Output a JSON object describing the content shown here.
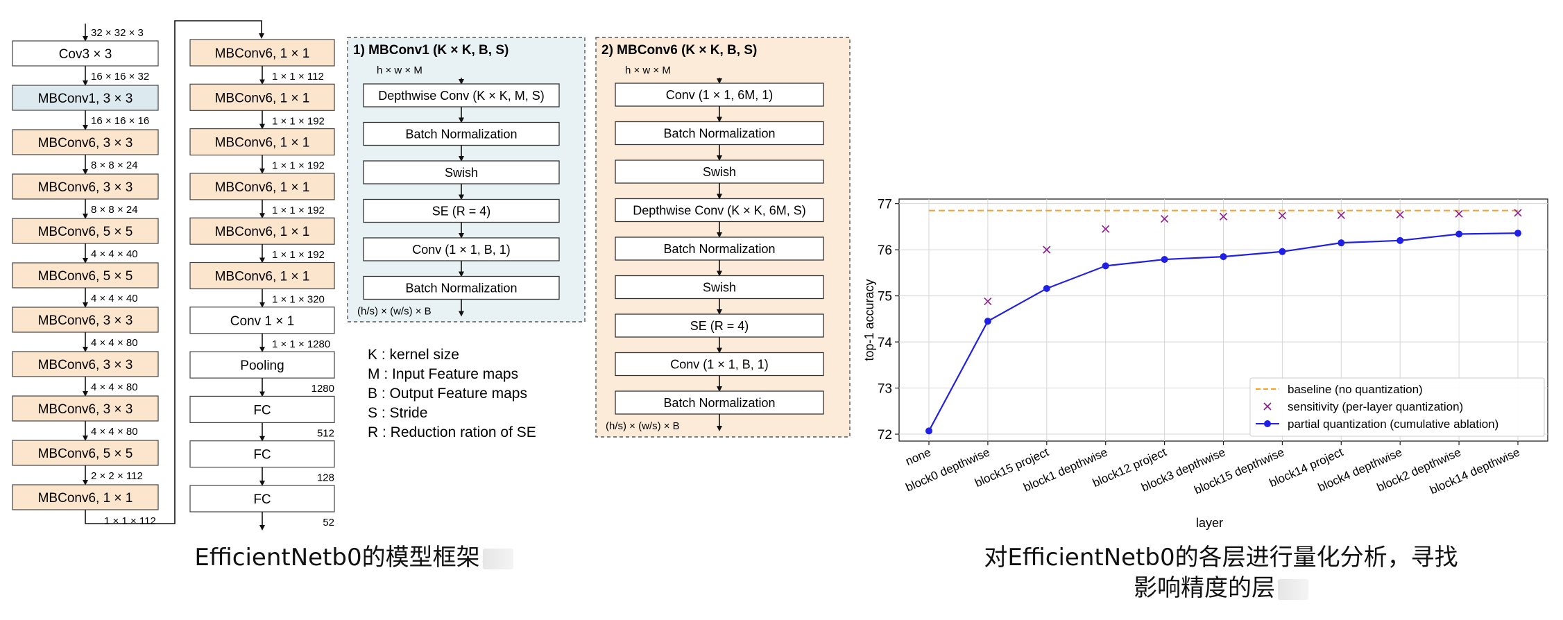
{
  "backbone": {
    "column1": [
      {
        "label": "Cov3 × 3",
        "kind": "conv",
        "shape_below": "16 × 16 × 32"
      },
      {
        "label": "MBConv1, 3 × 3",
        "kind": "mb1",
        "shape_below": "16 × 16 × 16"
      },
      {
        "label": "MBConv6, 3 × 3",
        "kind": "mb6",
        "shape_below": "8 × 8 × 24"
      },
      {
        "label": "MBConv6, 3 × 3",
        "kind": "mb6",
        "shape_below": "8 × 8 × 24"
      },
      {
        "label": "MBConv6, 5 × 5",
        "kind": "mb6",
        "shape_below": "4 × 4 × 40"
      },
      {
        "label": "MBConv6, 5 × 5",
        "kind": "mb6",
        "shape_below": "4 × 4 × 40"
      },
      {
        "label": "MBConv6, 3 × 3",
        "kind": "mb6",
        "shape_below": "4 × 4 × 80"
      },
      {
        "label": "MBConv6, 3 × 3",
        "kind": "mb6",
        "shape_below": "4 × 4 × 80"
      },
      {
        "label": "MBConv6, 3 × 3",
        "kind": "mb6",
        "shape_below": "4 × 4 × 80"
      },
      {
        "label": "MBConv6, 5 × 5",
        "kind": "mb6",
        "shape_below": "2 × 2 × 112"
      },
      {
        "label": "MBConv6, 1 × 1",
        "kind": "mb6",
        "shape_below": "1 × 1 × 112"
      }
    ],
    "input_shape": "32 × 32 × 3",
    "column2": [
      {
        "label": "MBConv6, 1 × 1",
        "kind": "mb6",
        "shape_below": "1 × 1 × 112"
      },
      {
        "label": "MBConv6, 1 × 1",
        "kind": "mb6",
        "shape_below": "1 × 1 × 192"
      },
      {
        "label": "MBConv6, 1 × 1",
        "kind": "mb6",
        "shape_below": "1 × 1 × 192"
      },
      {
        "label": "MBConv6, 1 × 1",
        "kind": "mb6",
        "shape_below": "1 × 1 × 192"
      },
      {
        "label": "MBConv6, 1 × 1",
        "kind": "mb6",
        "shape_below": "1 × 1 × 192"
      },
      {
        "label": "MBConv6, 1 × 1",
        "kind": "mb6",
        "shape_below": "1 × 1 × 320"
      },
      {
        "label": "Conv 1 × 1",
        "kind": "plain",
        "shape_below": "1 × 1 × 1280"
      },
      {
        "label": "Pooling",
        "kind": "plain",
        "shape_below": "1280"
      },
      {
        "label": "FC",
        "kind": "plain",
        "shape_below": "512"
      },
      {
        "label": "FC",
        "kind": "plain",
        "shape_below": "128"
      },
      {
        "label": "FC",
        "kind": "plain",
        "shape_below": "52"
      }
    ]
  },
  "mbconv1": {
    "title": "1) MBConv1 (K × K, B, S)",
    "input": "h × w × M",
    "output": "(h/s) × (w/s) × B",
    "layers": [
      "Depthwise Conv (K × K, M, S)",
      "Batch Normalization",
      "Swish",
      "SE (R = 4)",
      "Conv (1 × 1, B, 1)",
      "Batch Normalization"
    ]
  },
  "mbconv6": {
    "title": "2) MBConv6 (K × K, B, S)",
    "input": "h × w × M",
    "output": "(h/s) × (w/s) × B",
    "layers": [
      "Conv (1 × 1, 6M, 1)",
      "Batch Normalization",
      "Swish",
      "Depthwise Conv (K × K, 6M, S)",
      "Batch Normalization",
      "Swish",
      "SE (R = 4)",
      "Conv (1 × 1, B, 1)",
      "Batch Normalization"
    ]
  },
  "legend_defs": [
    "K : kernel size",
    "M : Input Feature maps",
    "B : Output Feature maps",
    "S : Stride",
    "R : Reduction ration of SE"
  ],
  "colors": {
    "mb1_fill": "#dce9ee",
    "mb6_fill": "#fbe5cc",
    "panel1_fill": "#e8f1f3",
    "panel2_fill": "#fcebd9",
    "baseline": "#ff9f1c",
    "sensitivity": "#8b1a8b",
    "partial": "#1f1fe6"
  },
  "captions": {
    "left": "EfficientNetb0的模型框架",
    "right_line1": "对EfficientNetb0的各层进行量化分析，寻找",
    "right_line2": "影响精度的层"
  },
  "chart_data": {
    "type": "line",
    "xlabel": "layer",
    "ylabel": "top-1 accuracy",
    "categories": [
      "none",
      "block0 depthwise",
      "block15 project",
      "block1 depthwise",
      "block12 project",
      "block3 depthwise",
      "block15 depthwise",
      "block14 project",
      "block4 depthwise",
      "block2 depthwise",
      "block14 depthwise"
    ],
    "ylim": [
      71.85,
      77.1
    ],
    "yticks": [
      72,
      73,
      74,
      75,
      76,
      77
    ],
    "grid": true,
    "legend_position": "lower-right",
    "series": [
      {
        "name": "baseline (no quantization)",
        "style": "dashed",
        "values": [
          76.85,
          76.85,
          76.85,
          76.85,
          76.85,
          76.85,
          76.85,
          76.85,
          76.85,
          76.85,
          76.85
        ]
      },
      {
        "name": "sensitivity (per-layer quantization)",
        "style": "x-markers",
        "values": [
          null,
          74.88,
          76.0,
          76.45,
          76.67,
          76.72,
          76.74,
          76.75,
          76.76,
          76.78,
          76.8
        ]
      },
      {
        "name": "partial quantization (cumulative ablation)",
        "style": "line-dots",
        "values": [
          72.07,
          74.45,
          75.16,
          75.65,
          75.79,
          75.85,
          75.96,
          76.15,
          76.2,
          76.34,
          76.36
        ]
      }
    ]
  }
}
